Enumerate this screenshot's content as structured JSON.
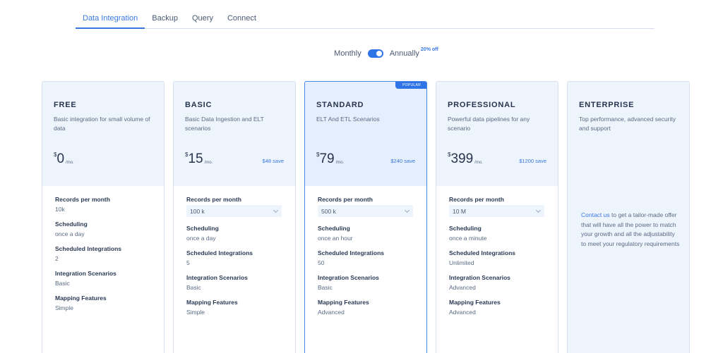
{
  "tabs": [
    {
      "label": "Data Integration",
      "active": true
    },
    {
      "label": "Backup",
      "active": false
    },
    {
      "label": "Query",
      "active": false
    },
    {
      "label": "Connect",
      "active": false
    }
  ],
  "billing": {
    "monthly_label": "Monthly",
    "annually_label": "Annually",
    "discount": "20% off",
    "toggle_state": "annually"
  },
  "plans": [
    {
      "name": "FREE",
      "description": "Basic integration for small volume of data",
      "currency": "$",
      "price": "0",
      "per": "/mo.",
      "save": "",
      "features": {
        "records": {
          "label": "Records per month",
          "value": "10k"
        },
        "scheduling": {
          "label": "Scheduling",
          "value": "once a day"
        },
        "scheduled": {
          "label": "Scheduled Integrations",
          "value": "2"
        },
        "scenarios": {
          "label": "Integration Scenarios",
          "value": "Basic"
        },
        "mapping": {
          "label": "Mapping Features",
          "value": "Simple"
        }
      }
    },
    {
      "name": "BASIC",
      "description": "Basic Data Ingestion and ELT scenarios",
      "currency": "$",
      "price": "15",
      "per": "/mo.",
      "save": "$48 save",
      "features": {
        "records": {
          "label": "Records per month",
          "value": "100 k"
        },
        "scheduling": {
          "label": "Scheduling",
          "value": "once a day"
        },
        "scheduled": {
          "label": "Scheduled Integrations",
          "value": "5"
        },
        "scenarios": {
          "label": "Integration Scenarios",
          "value": "Basic"
        },
        "mapping": {
          "label": "Mapping Features",
          "value": "Simple"
        }
      }
    },
    {
      "name": "STANDARD",
      "badge": "POPULAR",
      "description": "ELT And ETL Scenarios",
      "currency": "$",
      "price": "79",
      "per": "/mo.",
      "save": "$240 save",
      "features": {
        "records": {
          "label": "Records per month",
          "value": "500 k"
        },
        "scheduling": {
          "label": "Scheduling",
          "value": "once an hour"
        },
        "scheduled": {
          "label": "Scheduled Integrations",
          "value": "50"
        },
        "scenarios": {
          "label": "Integration Scenarios",
          "value": "Basic"
        },
        "mapping": {
          "label": "Mapping Features",
          "value": "Advanced"
        }
      }
    },
    {
      "name": "PROFESSIONAL",
      "description": "Powerful data pipelines for any scenario",
      "currency": "$",
      "price": "399",
      "per": "/mo.",
      "save": "$1200 save",
      "features": {
        "records": {
          "label": "Records per month",
          "value": "10 M"
        },
        "scheduling": {
          "label": "Scheduling",
          "value": "once a minute"
        },
        "scheduled": {
          "label": "Scheduled Integrations",
          "value": "Unlimited"
        },
        "scenarios": {
          "label": "Integration Scenarios",
          "value": "Advanced"
        },
        "mapping": {
          "label": "Mapping Features",
          "value": "Advanced"
        }
      }
    },
    {
      "name": "ENTERPRISE",
      "description": "Top performance, advanced security and support",
      "contact_link": "Contact us",
      "contact_text": " to get a tailor-made offer that will have all the power to match your growth and all the adjustability to meet your regulatory requirements"
    }
  ],
  "colors": {
    "accent": "#2f74e6",
    "card_head_bg": "#eef4fc",
    "text_dark": "#27344d",
    "text_muted": "#5a6b85"
  }
}
